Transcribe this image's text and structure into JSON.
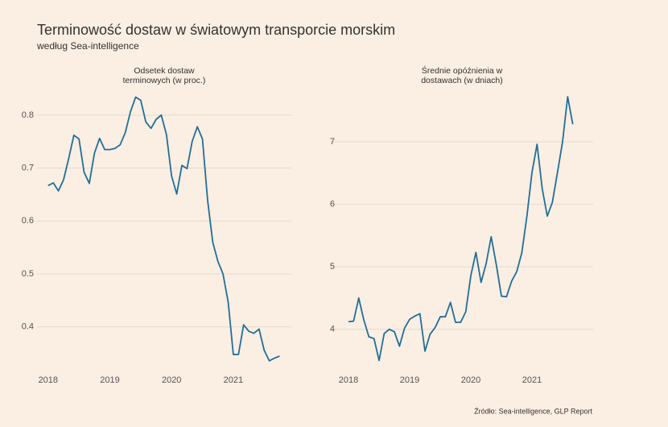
{
  "title": "Terminowość dostaw w światowym transporcie morskim",
  "subtitle": "według Sea-intelligence",
  "source": "Źródło: Sea-intelligence, GLP Report",
  "chart_data": [
    {
      "type": "line",
      "title": "Odsetek dostaw\nterminowych (w proc.)",
      "x": [
        2018,
        2018.083,
        2018.167,
        2018.25,
        2018.333,
        2018.417,
        2018.5,
        2018.583,
        2018.667,
        2018.75,
        2018.833,
        2018.917,
        2019,
        2019.083,
        2019.167,
        2019.25,
        2019.333,
        2019.417,
        2019.5,
        2019.583,
        2019.667,
        2019.75,
        2019.833,
        2019.917,
        2020,
        2020.083,
        2020.167,
        2020.25,
        2020.333,
        2020.417,
        2020.5,
        2020.583,
        2020.667,
        2020.75,
        2020.833,
        2020.917,
        2021,
        2021.083,
        2021.167,
        2021.25,
        2021.333,
        2021.417,
        2021.5,
        2021.583,
        2021.667,
        2021.75
      ],
      "series": [
        {
          "color": "#1f6f99",
          "values": [
            0.667,
            0.672,
            0.657,
            0.678,
            0.718,
            0.762,
            0.755,
            0.692,
            0.671,
            0.728,
            0.756,
            0.735,
            0.735,
            0.737,
            0.744,
            0.767,
            0.806,
            0.834,
            0.828,
            0.787,
            0.775,
            0.792,
            0.8,
            0.763,
            0.685,
            0.651,
            0.705,
            0.699,
            0.75,
            0.778,
            0.755,
            0.64,
            0.56,
            0.524,
            0.5,
            0.447,
            0.348,
            0.348,
            0.404,
            0.392,
            0.388,
            0.396,
            0.356,
            0.336,
            0.341,
            0.345
          ]
        }
      ],
      "xlim": [
        2017.82,
        2021.94
      ],
      "xticks": [
        2018,
        2019,
        2020,
        2021
      ],
      "ylim": [
        0.313,
        0.85
      ],
      "yticks": [
        0.4,
        0.5,
        0.6,
        0.7,
        0.8
      ],
      "grid": true
    },
    {
      "type": "line",
      "title": "Średnie opóźnienia w\ndostawach (w dniach)",
      "x": [
        2018,
        2018.083,
        2018.167,
        2018.25,
        2018.333,
        2018.417,
        2018.5,
        2018.583,
        2018.667,
        2018.75,
        2018.833,
        2018.917,
        2019,
        2019.083,
        2019.167,
        2019.25,
        2019.333,
        2019.417,
        2019.5,
        2019.583,
        2019.667,
        2019.75,
        2019.833,
        2019.917,
        2020,
        2020.083,
        2020.167,
        2020.25,
        2020.333,
        2020.417,
        2020.5,
        2020.583,
        2020.667,
        2020.75,
        2020.833,
        2020.917,
        2021,
        2021.083,
        2021.167,
        2021.25,
        2021.333,
        2021.417,
        2021.5,
        2021.583,
        2021.667
      ],
      "series": [
        {
          "color": "#1f6f99",
          "values": [
            4.12,
            4.13,
            4.5,
            4.15,
            3.88,
            3.85,
            3.5,
            3.93,
            4.0,
            3.96,
            3.73,
            4.02,
            4.16,
            4.21,
            4.25,
            3.65,
            3.92,
            4.03,
            4.2,
            4.2,
            4.43,
            4.11,
            4.11,
            4.28,
            4.86,
            5.23,
            4.75,
            5.05,
            5.48,
            5.03,
            4.53,
            4.52,
            4.77,
            4.92,
            5.22,
            5.81,
            6.51,
            6.96,
            6.25,
            5.81,
            6.03,
            6.51,
            7.0,
            7.72,
            7.28
          ]
        }
      ],
      "xlim": [
        2017.71,
        2022.0
      ],
      "xticks": [
        2018,
        2019,
        2020,
        2021
      ],
      "ylim": [
        3.3,
        7.85
      ],
      "yticks": [
        4,
        5,
        6,
        7
      ],
      "grid": true
    }
  ]
}
